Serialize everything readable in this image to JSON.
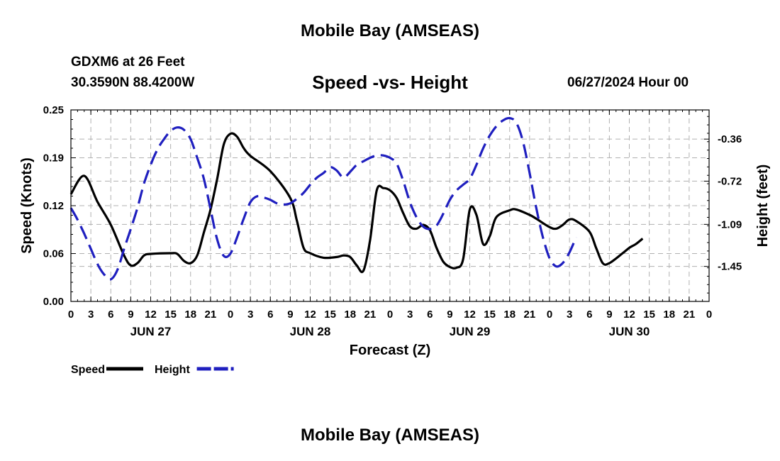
{
  "header": {
    "title": "Mobile Bay (AMSEAS)",
    "station": "GDXM6 at 26 Feet",
    "coordinates": "30.3590N  88.4200W",
    "chart_title": "Speed -vs- Height",
    "forecast_time": "06/27/2024 Hour 00",
    "bottom_title": "Mobile Bay (AMSEAS)"
  },
  "colors": {
    "speed": "#000000",
    "height": "#1f1fbf",
    "grid": "#b0b0b0"
  },
  "chart_data": {
    "type": "line",
    "title": "Speed -vs- Height",
    "xlabel": "Forecast (Z)",
    "ylabel": "Speed (Knots)",
    "y2label": "Height (feet)",
    "x_unit": "forecast hours from 06/27/2024 00Z",
    "xlim": [
      0,
      96
    ],
    "ylim": [
      0,
      0.25
    ],
    "y2lim": [
      -1.75,
      -0.11
    ],
    "hour_ticks": [
      0,
      3,
      6,
      9,
      12,
      15,
      18,
      21,
      0,
      3,
      6,
      9,
      12,
      15,
      18,
      21,
      0,
      3,
      6,
      9,
      12,
      15,
      18,
      21,
      0,
      3,
      6,
      9,
      12,
      15,
      18,
      21,
      0
    ],
    "day_labels": [
      {
        "label": "JUN 27",
        "hour": 12
      },
      {
        "label": "JUN 28",
        "hour": 36
      },
      {
        "label": "JUN 29",
        "hour": 60
      },
      {
        "label": "JUN 30",
        "hour": 84
      }
    ],
    "y_ticks": [
      "0.00",
      "0.06",
      "0.12",
      "0.19",
      "0.25"
    ],
    "y2_ticks": [
      "-0.36",
      "-0.72",
      "-1.09",
      "-1.45"
    ],
    "y2_tick_values": [
      -0.36,
      -0.72,
      -1.09,
      -1.45
    ],
    "grid": true,
    "legend_position": "bottom-left",
    "series": [
      {
        "name": "Speed",
        "axis": "left",
        "style": "solid",
        "points": [
          [
            0,
            0.14
          ],
          [
            2,
            0.164
          ],
          [
            4,
            0.13
          ],
          [
            6,
            0.1
          ],
          [
            8,
            0.06
          ],
          [
            9,
            0.047
          ],
          [
            10,
            0.05
          ],
          [
            11,
            0.06
          ],
          [
            12,
            0.062
          ],
          [
            15,
            0.063
          ],
          [
            16,
            0.062
          ],
          [
            17,
            0.053
          ],
          [
            18,
            0.05
          ],
          [
            19,
            0.06
          ],
          [
            20,
            0.09
          ],
          [
            21,
            0.12
          ],
          [
            22,
            0.16
          ],
          [
            23,
            0.205
          ],
          [
            24,
            0.219
          ],
          [
            25,
            0.215
          ],
          [
            26,
            0.2
          ],
          [
            27,
            0.19
          ],
          [
            30,
            0.17
          ],
          [
            33,
            0.135
          ],
          [
            34,
            0.105
          ],
          [
            35,
            0.07
          ],
          [
            36,
            0.063
          ],
          [
            38,
            0.057
          ],
          [
            40,
            0.058
          ],
          [
            41,
            0.06
          ],
          [
            42,
            0.058
          ],
          [
            43,
            0.047
          ],
          [
            44,
            0.04
          ],
          [
            45,
            0.08
          ],
          [
            46,
            0.145
          ],
          [
            47,
            0.148
          ],
          [
            48,
            0.145
          ],
          [
            49,
            0.135
          ],
          [
            50,
            0.115
          ],
          [
            51,
            0.098
          ],
          [
            52,
            0.095
          ],
          [
            53,
            0.1
          ],
          [
            54,
            0.093
          ],
          [
            55,
            0.07
          ],
          [
            56,
            0.052
          ],
          [
            57,
            0.045
          ],
          [
            58,
            0.044
          ],
          [
            59,
            0.055
          ],
          [
            60,
            0.12
          ],
          [
            61,
            0.113
          ],
          [
            62,
            0.075
          ],
          [
            63,
            0.085
          ],
          [
            64,
            0.11
          ],
          [
            66,
            0.119
          ],
          [
            67,
            0.12
          ],
          [
            69,
            0.113
          ],
          [
            70,
            0.108
          ],
          [
            72,
            0.097
          ],
          [
            73,
            0.095
          ],
          [
            74,
            0.1
          ],
          [
            75,
            0.107
          ],
          [
            76,
            0.105
          ],
          [
            78,
            0.091
          ],
          [
            79,
            0.07
          ],
          [
            80,
            0.05
          ],
          [
            81,
            0.05
          ],
          [
            83,
            0.063
          ],
          [
            84,
            0.07
          ],
          [
            85,
            0.075
          ],
          [
            86,
            0.082
          ]
        ]
      },
      {
        "name": "Height",
        "axis": "right",
        "style": "dashed",
        "points": [
          [
            0,
            -0.95
          ],
          [
            1,
            -1.05
          ],
          [
            2,
            -1.17
          ],
          [
            3,
            -1.3
          ],
          [
            4,
            -1.43
          ],
          [
            5,
            -1.52
          ],
          [
            6,
            -1.56
          ],
          [
            7,
            -1.48
          ],
          [
            8,
            -1.3
          ],
          [
            9,
            -1.13
          ],
          [
            10,
            -0.95
          ],
          [
            11,
            -0.74
          ],
          [
            12,
            -0.58
          ],
          [
            13,
            -0.45
          ],
          [
            14,
            -0.36
          ],
          [
            15,
            -0.29
          ],
          [
            16,
            -0.26
          ],
          [
            17,
            -0.28
          ],
          [
            18,
            -0.36
          ],
          [
            19,
            -0.52
          ],
          [
            20,
            -0.7
          ],
          [
            21,
            -0.96
          ],
          [
            22,
            -1.22
          ],
          [
            23,
            -1.36
          ],
          [
            24,
            -1.34
          ],
          [
            25,
            -1.2
          ],
          [
            26,
            -1.04
          ],
          [
            27,
            -0.9
          ],
          [
            28,
            -0.85
          ],
          [
            29,
            -0.86
          ],
          [
            30,
            -0.88
          ],
          [
            31,
            -0.91
          ],
          [
            32,
            -0.92
          ],
          [
            33,
            -0.91
          ],
          [
            34,
            -0.87
          ],
          [
            35,
            -0.82
          ],
          [
            36,
            -0.75
          ],
          [
            37,
            -0.69
          ],
          [
            38,
            -0.65
          ],
          [
            39,
            -0.6
          ],
          [
            40,
            -0.63
          ],
          [
            41,
            -0.69
          ],
          [
            42,
            -0.64
          ],
          [
            43,
            -0.58
          ],
          [
            44,
            -0.55
          ],
          [
            45,
            -0.52
          ],
          [
            46,
            -0.5
          ],
          [
            47,
            -0.5
          ],
          [
            48,
            -0.52
          ],
          [
            49,
            -0.57
          ],
          [
            50,
            -0.72
          ],
          [
            51,
            -0.9
          ],
          [
            52,
            -1.03
          ],
          [
            53,
            -1.11
          ],
          [
            54,
            -1.13
          ],
          [
            55,
            -1.1
          ],
          [
            56,
            -1.0
          ],
          [
            57,
            -0.88
          ],
          [
            58,
            -0.8
          ],
          [
            59,
            -0.75
          ],
          [
            60,
            -0.7
          ],
          [
            61,
            -0.58
          ],
          [
            62,
            -0.44
          ],
          [
            63,
            -0.33
          ],
          [
            64,
            -0.25
          ],
          [
            65,
            -0.2
          ],
          [
            66,
            -0.18
          ],
          [
            67,
            -0.22
          ],
          [
            68,
            -0.38
          ],
          [
            69,
            -0.65
          ],
          [
            70,
            -0.95
          ],
          [
            71,
            -1.2
          ],
          [
            72,
            -1.38
          ],
          [
            73,
            -1.45
          ],
          [
            74,
            -1.42
          ],
          [
            75,
            -1.33
          ],
          [
            76,
            -1.2
          ]
        ]
      }
    ]
  },
  "legend": [
    {
      "label": "Speed",
      "style": "solid"
    },
    {
      "label": "Height",
      "style": "dashed"
    }
  ]
}
